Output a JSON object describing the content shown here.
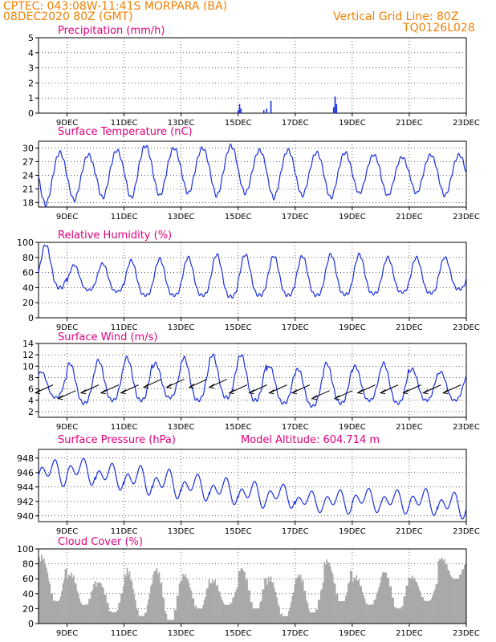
{
  "header": {
    "line1": "CPTEC:   043:08W-11:41S   MORPARA (BA)",
    "line2": "08DEC2020 80Z (GMT)",
    "grid_note": "Vertical Grid Line: 80Z",
    "code": "TQ0126L028"
  },
  "colors": {
    "header": "#f08000",
    "panel_title": "#e0007a",
    "series": "#1a2fe0",
    "cloud_fill": "#a9a9a9",
    "wind_arrow": "#000000"
  },
  "x_axis": {
    "range_days": [
      8.0,
      23.0
    ],
    "tick_labels": [
      "9DEC",
      "11DEC",
      "13DEC",
      "15DEC",
      "17DEC",
      "19DEC",
      "21DEC",
      "23DEC"
    ],
    "tick_days": [
      9,
      11,
      13,
      15,
      17,
      19,
      21,
      23
    ]
  },
  "chart_data": [
    {
      "type": "bar",
      "title": "Precipitation (mm/h)",
      "ylim": [
        0,
        5
      ],
      "yticks": [
        0,
        1,
        2,
        3,
        4,
        5
      ],
      "x": [
        15.0,
        15.05,
        15.1,
        15.9,
        16.0,
        16.15,
        18.35,
        18.4,
        18.45
      ],
      "values": [
        0.2,
        0.6,
        0.3,
        0.2,
        0.3,
        0.8,
        0.4,
        1.1,
        0.6
      ]
    },
    {
      "type": "line",
      "title": "Surface Temperature (nC)",
      "ylim": [
        17,
        31.5
      ],
      "yticks": [
        18,
        21,
        24,
        27,
        30
      ],
      "x_start": 8.0,
      "daily_min": [
        17.5,
        18.5,
        19.0,
        19.0,
        19.5,
        20.0,
        19.5,
        20.0,
        19.0,
        19.5,
        19.0,
        20.0,
        19.5,
        20.0,
        19.5
      ],
      "daily_max": [
        29.0,
        28.5,
        29.5,
        30.5,
        30.0,
        30.0,
        30.5,
        29.5,
        29.5,
        29.0,
        29.0,
        28.5,
        28.0,
        28.5,
        28.5
      ]
    },
    {
      "type": "line",
      "title": "Relative Humidity (%)",
      "ylim": [
        0,
        100
      ],
      "yticks": [
        0,
        20,
        40,
        60,
        80,
        100
      ],
      "x_start": 8.0,
      "daily_max": [
        97,
        70,
        72,
        76,
        78,
        80,
        84,
        84,
        82,
        82,
        84,
        84,
        80,
        80,
        80
      ],
      "daily_min": [
        40,
        37,
        35,
        30,
        30,
        30,
        28,
        30,
        30,
        30,
        31,
        32,
        34,
        33,
        38
      ]
    },
    {
      "type": "line",
      "title": "Surface Wind (m/s)",
      "ylim": [
        1,
        14
      ],
      "yticks": [
        2,
        4,
        6,
        8,
        10,
        12,
        14
      ],
      "x_start": 8.0,
      "daily_min": [
        4.5,
        3.5,
        4.0,
        4.0,
        4.5,
        4.0,
        4.5,
        4.0,
        3.5,
        3.0,
        3.5,
        4.0,
        3.5,
        4.0,
        4.0
      ],
      "daily_max": [
        9.0,
        10.5,
        11.0,
        11.5,
        10.5,
        11.5,
        12.0,
        12.0,
        10.0,
        9.5,
        10.5,
        10.0,
        10.5,
        9.5,
        9.0
      ],
      "arrow_days": [
        8.2,
        9.0,
        9.8,
        10.5,
        11.2,
        12.0,
        12.8,
        13.6,
        14.3,
        15.0,
        15.7,
        16.4,
        17.2,
        17.9,
        18.7,
        19.5,
        20.3,
        21.1,
        21.8,
        22.5
      ],
      "arrow_speed": [
        6,
        5,
        6,
        6,
        6,
        7,
        7,
        7,
        7,
        6,
        6,
        6,
        6,
        5,
        5,
        6,
        6,
        6,
        6,
        6
      ],
      "arrow_dir": [
        225,
        235,
        250,
        255,
        245,
        255,
        260,
        255,
        255,
        250,
        255,
        260,
        255,
        250,
        245,
        240,
        245,
        250,
        245,
        240
      ]
    },
    {
      "type": "line",
      "title": "Surface Pressure (hPa)",
      "ylim": [
        939.2,
        949.2
      ],
      "yticks": [
        940,
        942,
        944,
        946,
        948
      ],
      "x_start": 8.0,
      "daily_mean": [
        946.0,
        946.2,
        945.5,
        945.0,
        944.5,
        944.0,
        943.5,
        943.0,
        942.8,
        942.0,
        942.0,
        942.2,
        942.0,
        942.0,
        941.5
      ],
      "amplitude": [
        2.0,
        2.0,
        2.0,
        2.2,
        2.2,
        2.0,
        2.0,
        2.0,
        1.8,
        1.6,
        1.8,
        1.8,
        1.8,
        2.0,
        2.0
      ],
      "annotation": "Model Altitude: 604.714 m"
    },
    {
      "type": "area",
      "title": "Cloud Cover (%)",
      "ylim": [
        0,
        100
      ],
      "yticks": [
        0,
        20,
        40,
        60,
        80,
        100
      ],
      "x_start": 8.0,
      "daily_peak": [
        95,
        70,
        60,
        75,
        80,
        70,
        60,
        80,
        65,
        70,
        90,
        65,
        75,
        65,
        90
      ],
      "daily_trough": [
        30,
        25,
        15,
        10,
        5,
        20,
        25,
        20,
        10,
        15,
        30,
        25,
        20,
        30,
        60
      ]
    }
  ]
}
